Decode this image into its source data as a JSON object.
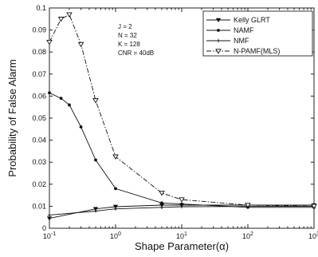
{
  "chart_data": {
    "type": "line",
    "xlabel": "Shape Parameter(α)",
    "ylabel": "Probability of False Alarm",
    "xscale": "log",
    "xlim": [
      0.1,
      1000
    ],
    "ylim": [
      0,
      0.1
    ],
    "grid": false,
    "legend_position": "top-right",
    "x_ticks": [
      {
        "value": 0.1,
        "base": "10",
        "exp": "-1"
      },
      {
        "value": 1,
        "base": "10",
        "exp": "0"
      },
      {
        "value": 10,
        "base": "10",
        "exp": "1"
      },
      {
        "value": 100,
        "base": "10",
        "exp": "2"
      },
      {
        "value": 1000,
        "base": "10",
        "exp": "3"
      }
    ],
    "y_ticks": [
      {
        "value": 0,
        "label": "0"
      },
      {
        "value": 0.01,
        "label": "0.01"
      },
      {
        "value": 0.02,
        "label": "0.02"
      },
      {
        "value": 0.03,
        "label": "0.03"
      },
      {
        "value": 0.04,
        "label": "0.04"
      },
      {
        "value": 0.05,
        "label": "0.05"
      },
      {
        "value": 0.06,
        "label": "0.06"
      },
      {
        "value": 0.07,
        "label": "0.07"
      },
      {
        "value": 0.08,
        "label": "0.08"
      },
      {
        "value": 0.09,
        "label": "0.09"
      },
      {
        "value": 0.1,
        "label": "0.1"
      }
    ],
    "annotations": [
      "J = 2",
      "N = 32",
      "K = 128",
      "CNR = 40dB"
    ],
    "series": [
      {
        "name": "Kelly GLRT",
        "marker": "down-triangle",
        "line_style": "solid",
        "x": [
          0.1,
          0.5,
          1,
          5,
          10,
          100,
          1000
        ],
        "y": [
          0.0045,
          0.0088,
          0.0098,
          0.0105,
          0.0105,
          0.0105,
          0.0105
        ]
      },
      {
        "name": "NAMF",
        "marker": "dot",
        "line_style": "solid",
        "x": [
          0.1,
          0.15,
          0.2,
          0.3,
          0.5,
          1,
          5,
          10,
          100,
          1000
        ],
        "y": [
          0.0615,
          0.059,
          0.056,
          0.046,
          0.031,
          0.018,
          0.0115,
          0.011,
          0.0095,
          0.0095
        ]
      },
      {
        "name": "NMF",
        "marker": "plus",
        "line_style": "solid",
        "x": [
          0.1,
          0.5,
          1,
          5,
          10,
          100,
          1000
        ],
        "y": [
          0.006,
          0.0078,
          0.0088,
          0.0095,
          0.0098,
          0.0099,
          0.01
        ]
      },
      {
        "name": "N-PAMF(MLS)",
        "marker": "open-triangle",
        "line_style": "dash-dot",
        "x": [
          0.1,
          0.15,
          0.2,
          0.3,
          0.5,
          1,
          5,
          10,
          100,
          1000
        ],
        "y": [
          0.0845,
          0.095,
          0.097,
          0.0835,
          0.058,
          0.0325,
          0.016,
          0.013,
          0.0105,
          0.01
        ]
      }
    ]
  }
}
